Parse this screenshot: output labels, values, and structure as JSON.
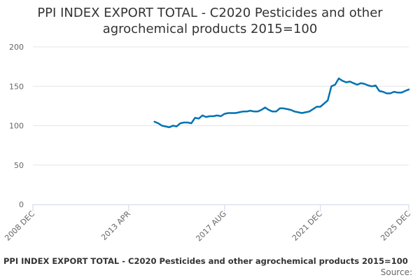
{
  "chart_data": {
    "type": "line",
    "title_lines": [
      "PPI INDEX EXPORT TOTAL - C2020 Pesticides and other",
      "agrochemical products 2015=100"
    ],
    "xlabel": "",
    "ylabel": "",
    "x_ticks": [
      "2008 DEC",
      "2013 APR",
      "2017 AUG",
      "2021 DEC",
      "2025 DEC"
    ],
    "y_ticks": [
      "0",
      "50",
      "100",
      "150",
      "200"
    ],
    "ylim": [
      0,
      200
    ],
    "xlim": [
      "2008-12",
      "2025-12"
    ],
    "grid": true,
    "legend": "none",
    "line_color": "#0072b2",
    "series": [
      {
        "x": [
          "2014-06",
          "2014-08",
          "2014-10",
          "2014-12",
          "2015-02",
          "2015-04",
          "2015-06",
          "2015-08",
          "2015-10",
          "2015-12",
          "2016-02",
          "2016-04",
          "2016-06",
          "2016-08",
          "2016-10",
          "2016-12",
          "2017-02",
          "2017-04",
          "2017-06",
          "2017-08",
          "2017-10",
          "2017-12",
          "2018-02",
          "2018-04",
          "2018-06",
          "2018-08",
          "2018-10",
          "2018-12",
          "2019-02",
          "2019-04",
          "2019-06",
          "2019-08",
          "2019-10",
          "2019-12",
          "2020-02",
          "2020-04",
          "2020-06",
          "2020-08",
          "2020-10",
          "2020-12",
          "2021-02",
          "2021-04",
          "2021-06",
          "2021-08",
          "2021-10",
          "2021-12",
          "2022-02",
          "2022-04",
          "2022-06",
          "2022-08",
          "2022-10",
          "2022-12",
          "2023-02",
          "2023-04",
          "2023-06",
          "2023-08",
          "2023-10",
          "2023-12",
          "2024-02",
          "2024-04",
          "2024-06",
          "2024-08",
          "2024-10",
          "2024-12",
          "2025-02",
          "2025-04",
          "2025-06",
          "2025-08",
          "2025-10",
          "2025-12"
        ],
        "values": [
          105,
          103,
          100,
          99,
          98,
          100,
          99,
          103,
          104,
          104,
          103,
          110,
          109,
          113,
          111,
          112,
          112,
          113,
          112,
          115,
          116,
          116,
          116,
          117,
          118,
          118,
          119,
          118,
          118,
          120,
          123,
          120,
          118,
          118,
          122,
          122,
          121,
          120,
          118,
          117,
          116,
          117,
          118,
          121,
          124,
          124,
          128,
          132,
          150,
          152,
          160,
          157,
          155,
          156,
          154,
          152,
          154,
          153,
          151,
          150,
          151,
          144,
          143,
          141,
          141,
          143,
          142,
          142,
          144,
          146
        ]
      }
    ]
  },
  "caption": "PPI INDEX EXPORT TOTAL - C2020 Pesticides and other agrochemical products 2015=100",
  "source_label": "Source:"
}
